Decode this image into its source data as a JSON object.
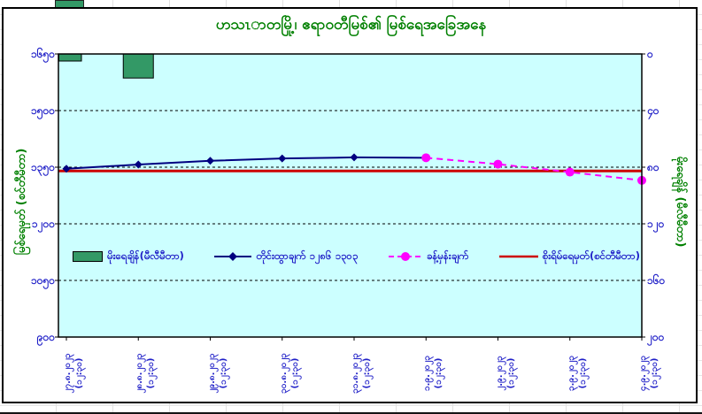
{
  "chart_data": {
    "type": "combo",
    "title": "ဟသၤာတမြို့၊ ဧရာဝတီမြစ်၏ မြစ်ရေအခြေအနေ",
    "plot_bg_color": "#CCFFFF",
    "grid": "horizontal dashed gridlines",
    "gridlines": {
      "horizontal_at": [
        1500,
        1350,
        1200,
        1050
      ],
      "style": "dashed"
    },
    "left_axis": {
      "title": "မြစ်ရေမှတ် (စင်တီမီတာ)",
      "tick_labels": [
        "၁၆၅၀",
        "၁၅၀၀",
        "၁၃၅၀",
        "၁၂၀၀",
        "၁၀၅၀",
        "၉၀၀"
      ],
      "tick_values": [
        1650,
        1500,
        1350,
        1200,
        1050,
        900
      ],
      "range": [
        900,
        1650
      ],
      "unit": "cm"
    },
    "right_axis": {
      "title": "မိုးရေချိန် (မီလီမီတာ)",
      "tick_labels": [
        "၀",
        "၄၀",
        "၈၀",
        "၁၂၀",
        "၁၆၀",
        "၂၀၀"
      ],
      "tick_values": [
        0,
        40,
        80,
        120,
        160,
        200
      ],
      "range": [
        0,
        200
      ],
      "unit": "mm",
      "orientation": "zero at top (inverted)"
    },
    "x_axis": {
      "labels_my": [
        {
          "date": "၂၇.၈.၂၀၂၃",
          "time": "(၁၂:၃၀)"
        },
        {
          "date": "၂၈.၈.၂၀၂၃",
          "time": "(၁၂:၃၀)"
        },
        {
          "date": "၂၉.၈.၂၀၂၃",
          "time": "(၁၂:၃၀)"
        },
        {
          "date": "၃၀.၈.၂၀၂၃",
          "time": "(၁၂:၃၀)"
        },
        {
          "date": "၃၁.၈.၂၀၂၃",
          "time": "(၁၂:၃၀)"
        },
        {
          "date": "၁.၉.၂၀၂၃",
          "time": "(၁၂:၃၀)"
        },
        {
          "date": "၂.၉.၂၀၂၃",
          "time": "(၁၂:၃၀)"
        },
        {
          "date": "၃.၉.၂၀၂၃",
          "time": "(၁၂:၃၀)"
        },
        {
          "date": "၄.၉.၂၀၂၃",
          "time": "(၁၂:၃၀)"
        }
      ],
      "dates": [
        "27.8.2023",
        "28.8.2023",
        "29.8.2023",
        "30.8.2023",
        "31.8.2023",
        "1.9.2023",
        "2.9.2023",
        "3.9.2023",
        "4.9.2023"
      ],
      "time_each": "12:30"
    },
    "series": [
      {
        "name": "မိုးရေချိန်(မီလီမီတာ)",
        "type": "bar",
        "axis": "right",
        "color": "#339966",
        "values": [
          5,
          17,
          0,
          0,
          0,
          0,
          0,
          0,
          0
        ]
      },
      {
        "name": "တိုင်းထွာချက် ၁၂၈၆ ၁၃၀၃",
        "type": "line",
        "axis": "left",
        "color": "#000080",
        "marker": "diamond",
        "values": [
          1346,
          1357,
          1367,
          1373,
          1376,
          1375,
          null,
          null,
          null
        ]
      },
      {
        "name": "ခန့်မှန်းချက်",
        "type": "dashed-line",
        "axis": "left",
        "color": "#FF00FF",
        "marker": "circle",
        "values": [
          null,
          null,
          null,
          null,
          null,
          1375,
          1358,
          1337,
          1315
        ]
      },
      {
        "name": "စိုးရိမ်ရေမှတ်(စင်တီမီတာ)",
        "type": "constant-line",
        "axis": "left",
        "color": "#CC0000",
        "value": 1340
      }
    ]
  },
  "background": {
    "corner_cell_color": "#339966"
  }
}
